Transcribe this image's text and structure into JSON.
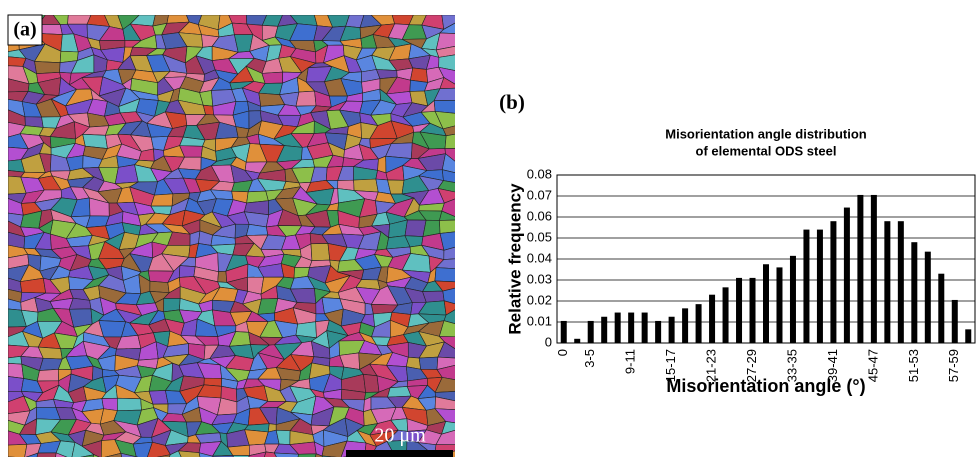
{
  "panel_a_label": "(a)",
  "scale_bar_label": "20 μm",
  "panel_b_label": "(b)",
  "chart_data": {
    "type": "bar",
    "title": [
      "Misorientation angle distribution",
      "of elemental ODS steel"
    ],
    "x_label": "Misorientation angle (°)",
    "y_label": "Relative frequency",
    "categories": [
      "0",
      null,
      "3-5",
      null,
      null,
      "9-11",
      null,
      null,
      "15-17",
      null,
      null,
      "21-23",
      null,
      null,
      "27-29",
      null,
      null,
      "33-35",
      null,
      null,
      "39-41",
      null,
      null,
      "45-47",
      null,
      null,
      "51-53",
      null,
      null,
      "57-59",
      null
    ],
    "values": [
      0.0105,
      0.002,
      0.0105,
      0.0125,
      0.0145,
      0.0145,
      0.0145,
      0.0105,
      0.0125,
      0.0165,
      0.0185,
      0.023,
      0.0265,
      0.031,
      0.031,
      0.0375,
      0.036,
      0.0415,
      0.054,
      0.054,
      0.058,
      0.0645,
      0.0705,
      0.0705,
      0.058,
      0.058,
      0.048,
      0.0435,
      0.033,
      0.0205,
      0.0065
    ],
    "color": "#000000",
    "ylim": [
      0,
      0.08
    ],
    "yticks": [
      0,
      0.01,
      0.02,
      0.03,
      0.04,
      0.05,
      0.06,
      0.07,
      0.08
    ],
    "grid": true
  }
}
